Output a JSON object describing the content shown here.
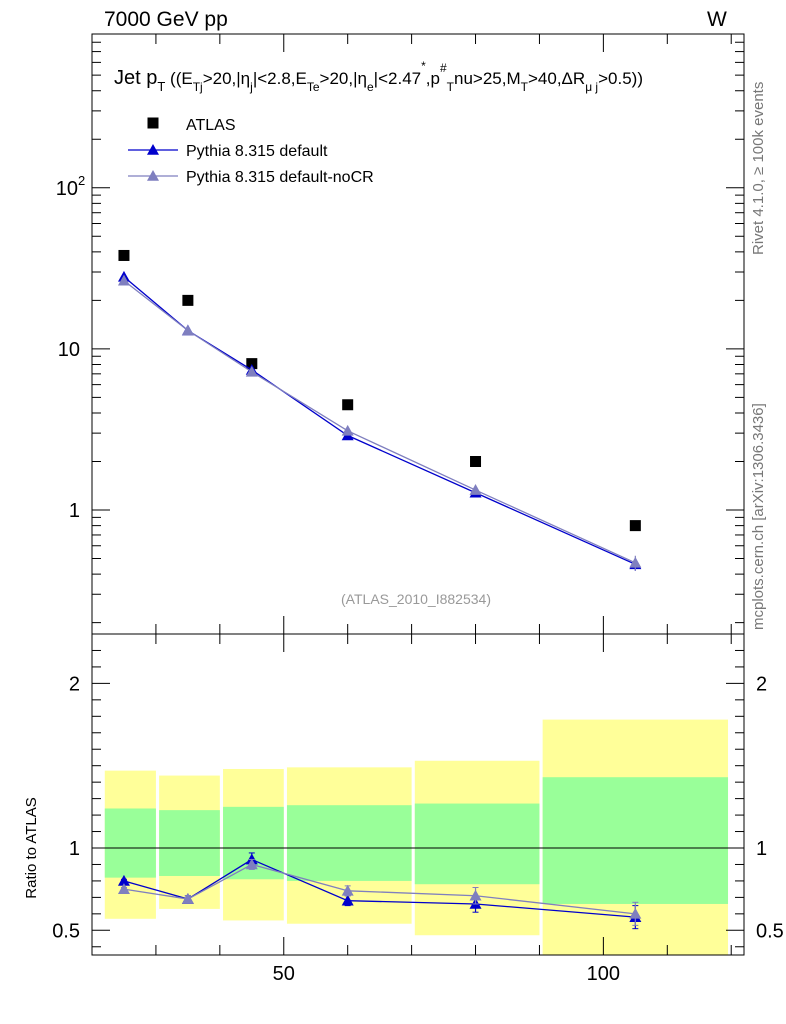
{
  "header": {
    "energy_label": "7000 GeV pp",
    "process_label": "W",
    "rivet_label": "Rivet 4.1.0, ≥ 100k events",
    "mcplots_label": "mcplots.cern.ch [arXiv:1306.3436]",
    "analysis_label": "(ATLAS_2010_I882534)"
  },
  "colors": {
    "data": "#000000",
    "default": "#0000cc",
    "nocr": "#7f7fbf",
    "band_inner": "#99ff99",
    "band_outer": "#ffff99"
  },
  "chart_data": {
    "type": "scatter",
    "title_main": "Jet p",
    "title_sub": "T",
    "title_cuts": "((E",
    "title_cuts_rest": ">20,|η",
    "title_full": "Jet p_T ((E_Tj>20,|η_j|<2.8,E_Te>20,|η_e|<2.47^*,p_T^#nu>25,M_T>40,ΔR_μ j>0.5))",
    "xlim": [
      20,
      122
    ],
    "x_ticks": [
      50,
      100
    ],
    "legend": [
      {
        "label": "ATLAS",
        "marker": "square"
      },
      {
        "label": "Pythia 8.315 default",
        "marker": "triangle"
      },
      {
        "label": "Pythia 8.315 default-noCR",
        "marker": "triangle"
      }
    ],
    "main": {
      "yscale": "log",
      "ylim": [
        0.17,
        900
      ],
      "y_tick_labels": [
        "1",
        "10",
        "10²"
      ],
      "series": [
        {
          "name": "ATLAS",
          "x": [
            25,
            35,
            45,
            60,
            80,
            105
          ],
          "y": [
            38,
            20,
            8.1,
            4.5,
            2.0,
            0.8
          ]
        },
        {
          "name": "Pythia 8.315 default",
          "x": [
            25,
            35,
            45,
            60,
            80,
            105
          ],
          "y": [
            28,
            13,
            7.4,
            2.9,
            1.28,
            0.46
          ],
          "err": [
            0,
            0,
            0,
            0.1,
            0.06,
            0.04
          ]
        },
        {
          "name": "Pythia 8.315 default-noCR",
          "x": [
            25,
            35,
            45,
            60,
            80,
            105
          ],
          "y": [
            26.5,
            13,
            7.2,
            3.1,
            1.33,
            0.47
          ],
          "err": [
            0,
            0,
            0,
            0.1,
            0.07,
            0.05
          ]
        }
      ]
    },
    "ratio": {
      "ylabel": "Ratio to ATLAS",
      "ylim": [
        0.35,
        2.3
      ],
      "y_ticks": [
        0.5,
        1,
        2
      ],
      "y_tick_labels": [
        "0.5",
        "1",
        "2"
      ],
      "bands": [
        {
          "x0": 20,
          "x1": 30,
          "outer": [
            0.57,
            1.47
          ],
          "inner": [
            0.82,
            1.24
          ]
        },
        {
          "x0": 30,
          "x1": 40,
          "outer": [
            0.63,
            1.44
          ],
          "inner": [
            0.83,
            1.23
          ]
        },
        {
          "x0": 40,
          "x1": 50,
          "outer": [
            0.56,
            1.48
          ],
          "inner": [
            0.81,
            1.25
          ]
        },
        {
          "x0": 50,
          "x1": 70,
          "outer": [
            0.54,
            1.49
          ],
          "inner": [
            0.8,
            1.26
          ]
        },
        {
          "x0": 70,
          "x1": 90,
          "outer": [
            0.47,
            1.53
          ],
          "inner": [
            0.78,
            1.27
          ]
        },
        {
          "x0": 90,
          "x1": 120,
          "outer": [
            0.35,
            1.78
          ],
          "inner": [
            0.66,
            1.43
          ]
        }
      ],
      "series": [
        {
          "name": "Pythia 8.315 default",
          "x": [
            25,
            35,
            45,
            60,
            80,
            105
          ],
          "y": [
            0.8,
            0.69,
            0.93,
            0.68,
            0.66,
            0.58
          ],
          "err": [
            0.01,
            0.02,
            0.04,
            0.03,
            0.05,
            0.07
          ]
        },
        {
          "name": "Pythia 8.315 default-noCR",
          "x": [
            25,
            35,
            45,
            60,
            80,
            105
          ],
          "y": [
            0.75,
            0.69,
            0.9,
            0.74,
            0.71,
            0.6
          ],
          "err": [
            0.01,
            0.02,
            0.03,
            0.03,
            0.05,
            0.07
          ]
        }
      ]
    }
  }
}
